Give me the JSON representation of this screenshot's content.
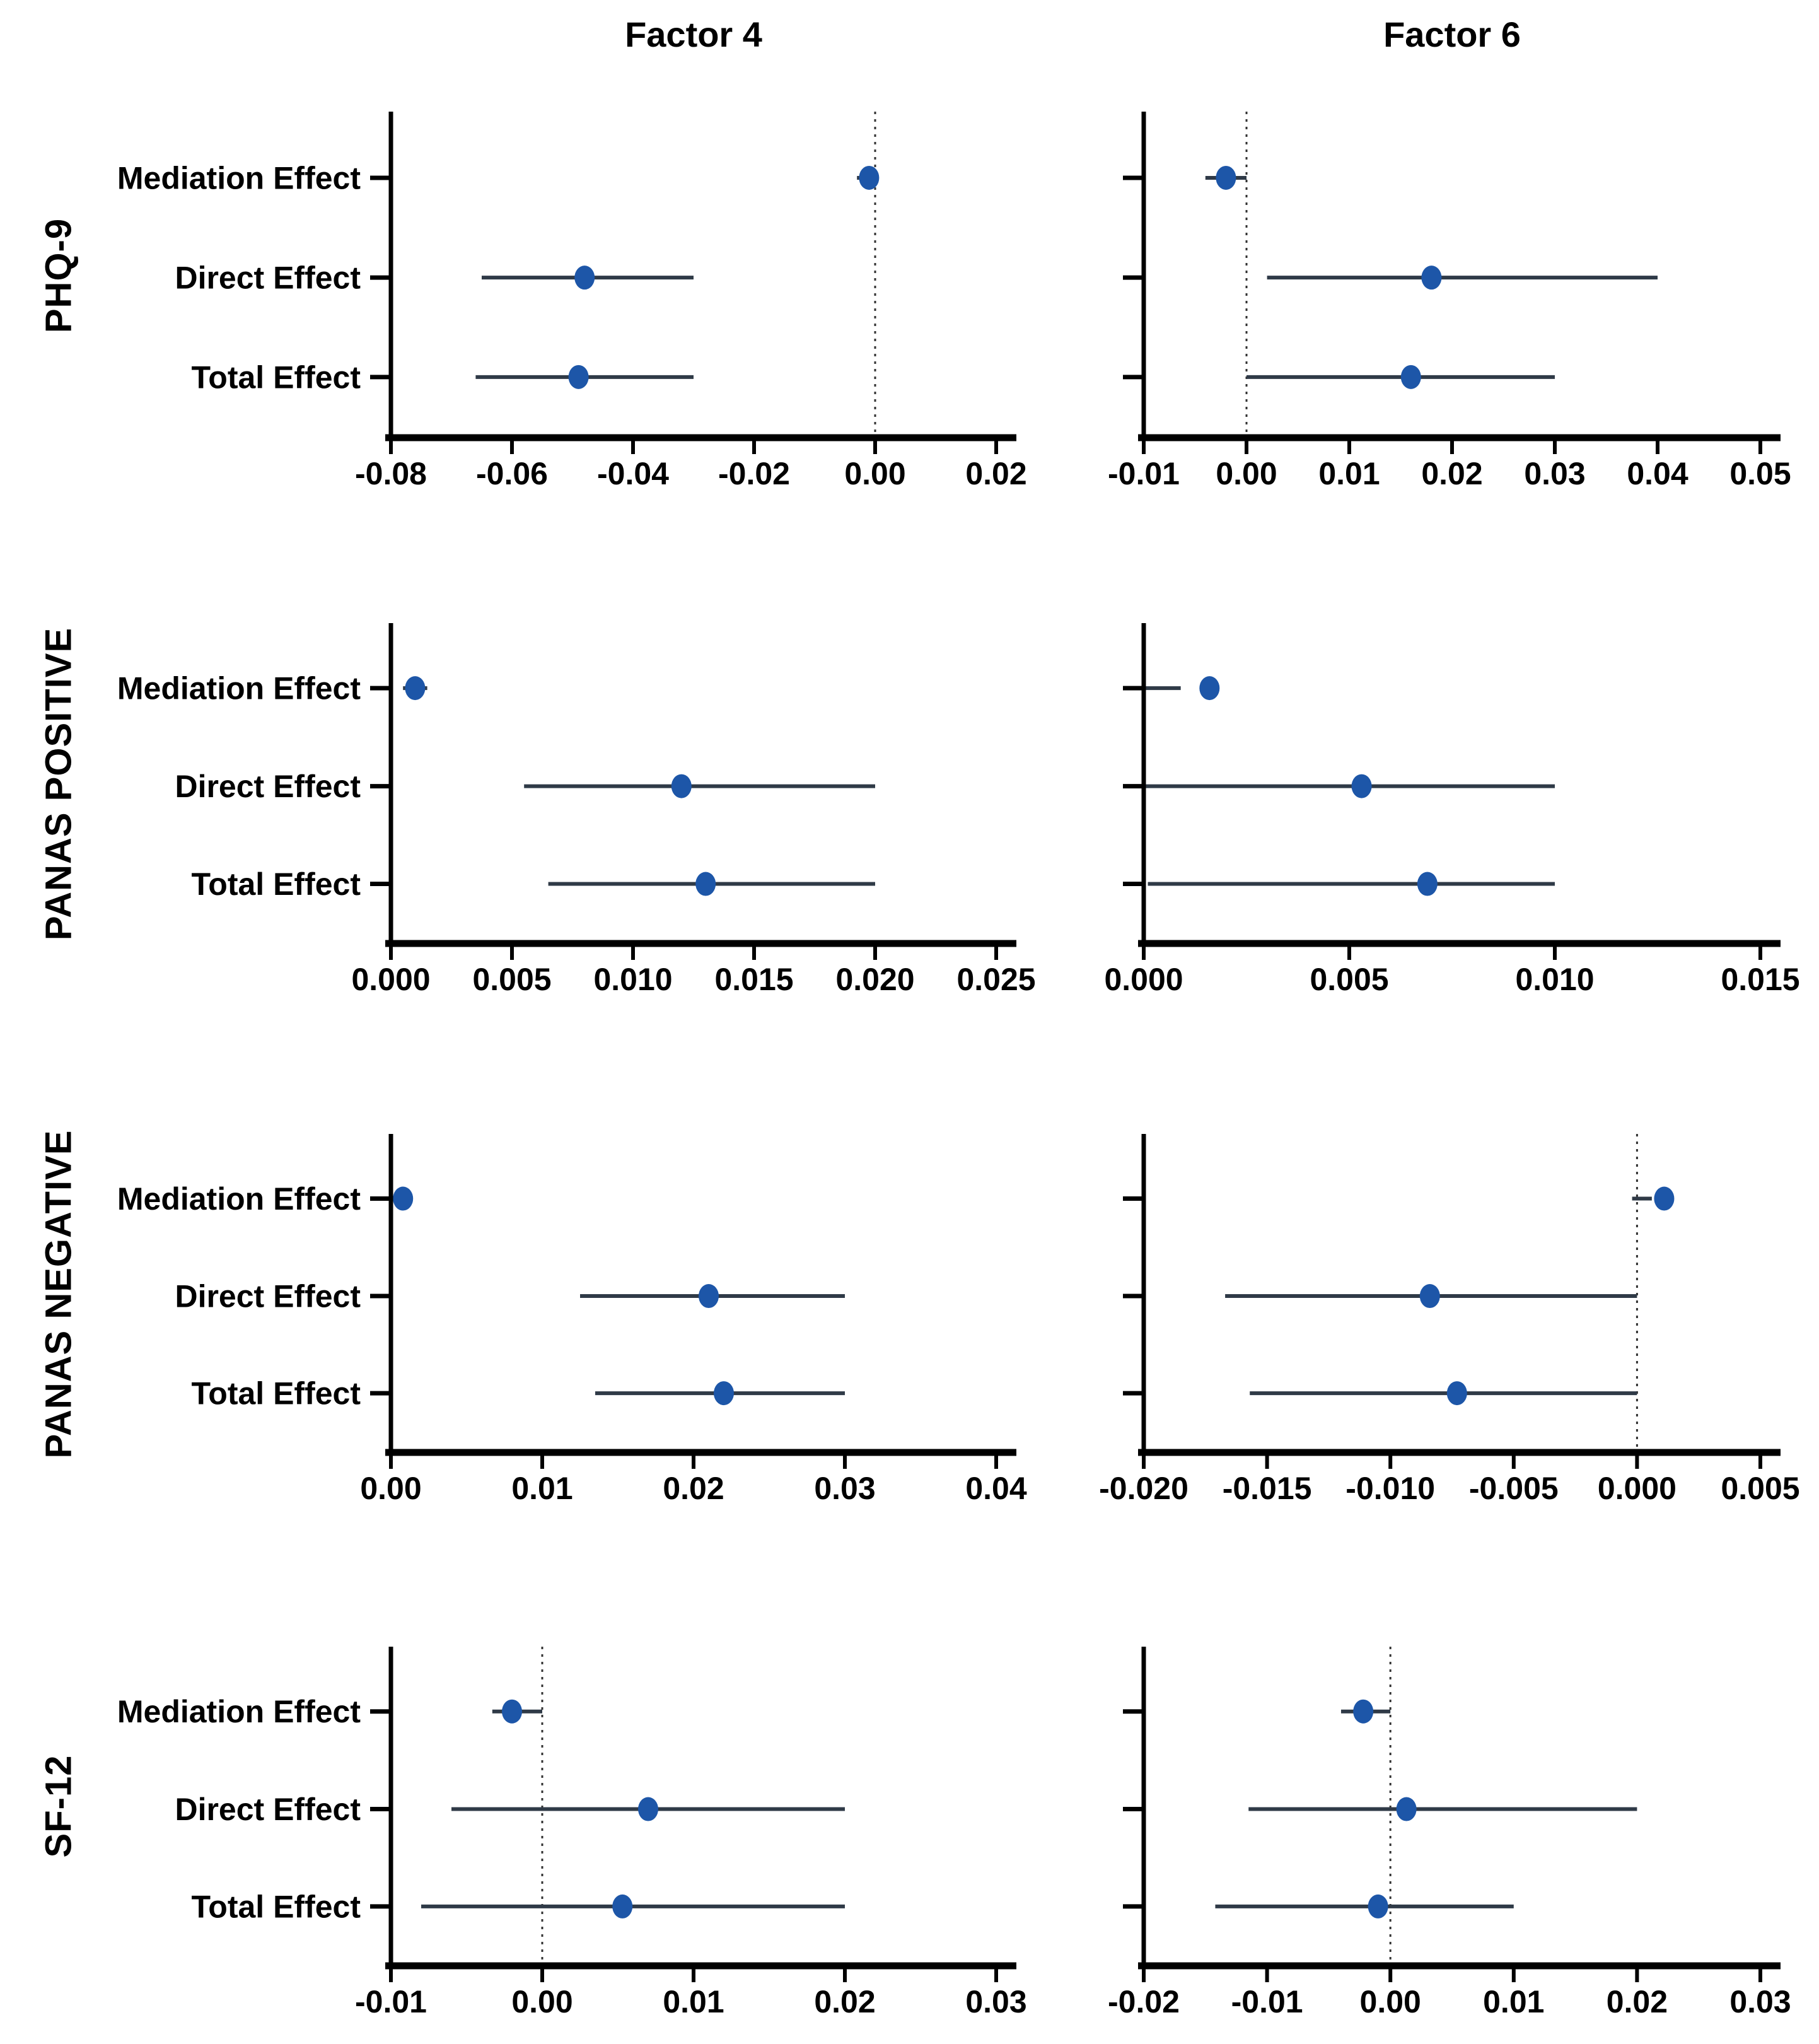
{
  "figure": {
    "column_titles": [
      "Factor 4",
      "Factor 6"
    ],
    "row_labels": [
      "PHQ-9",
      "PANAS POSITIVE",
      "PANAS NEGATIVE",
      "SF-12"
    ],
    "y_categories": [
      "Mediation Effect",
      "Direct Effect",
      "Total Effect"
    ],
    "colors": {
      "point": "#1d56a8",
      "ci_line": "#2f3a47",
      "axis": "#000000",
      "zero_line": "#333333",
      "text": "#000000",
      "background": "#ffffff"
    }
  },
  "chart_data": [
    {
      "type": "forest",
      "row_label": "PHQ-9",
      "column_title": "Factor 4",
      "categories": [
        "Mediation Effect",
        "Direct Effect",
        "Total Effect"
      ],
      "estimates": [
        -0.001,
        -0.048,
        -0.049
      ],
      "ci_low": [
        -0.003,
        -0.065,
        -0.066
      ],
      "ci_high": [
        0.0,
        -0.03,
        -0.03
      ],
      "xlim": [
        -0.08,
        0.02
      ],
      "xticks": [
        -0.08,
        -0.06,
        -0.04,
        -0.02,
        0.0,
        0.02
      ],
      "xtick_labels": [
        "-0.08",
        "-0.06",
        "-0.04",
        "-0.02",
        "0.00",
        "0.02"
      ],
      "zero_line": true
    },
    {
      "type": "forest",
      "row_label": "PHQ-9",
      "column_title": "Factor 6",
      "categories": [
        "Mediation Effect",
        "Direct Effect",
        "Total Effect"
      ],
      "estimates": [
        -0.002,
        0.018,
        0.016
      ],
      "ci_low": [
        -0.004,
        0.002,
        0.0
      ],
      "ci_high": [
        0.0,
        0.04,
        0.03
      ],
      "xlim": [
        -0.01,
        0.05
      ],
      "xticks": [
        -0.01,
        0.0,
        0.01,
        0.02,
        0.03,
        0.04,
        0.05
      ],
      "xtick_labels": [
        "-0.01",
        "0.00",
        "0.01",
        "0.02",
        "0.03",
        "0.04",
        "0.05"
      ],
      "zero_line": true
    },
    {
      "type": "forest",
      "row_label": "PANAS POSITIVE",
      "column_title": "Factor 4",
      "categories": [
        "Mediation Effect",
        "Direct Effect",
        "Total Effect"
      ],
      "estimates": [
        0.001,
        0.012,
        0.013
      ],
      "ci_low": [
        0.0005,
        0.0055,
        0.0065
      ],
      "ci_high": [
        0.0015,
        0.02,
        0.02
      ],
      "xlim": [
        0.0,
        0.025
      ],
      "xticks": [
        0.0,
        0.005,
        0.01,
        0.015,
        0.02,
        0.025
      ],
      "xtick_labels": [
        "0.000",
        "0.005",
        "0.010",
        "0.015",
        "0.020",
        "0.025"
      ],
      "zero_line": false
    },
    {
      "type": "forest",
      "row_label": "PANAS POSITIVE",
      "column_title": "Factor 6",
      "categories": [
        "Mediation Effect",
        "Direct Effect",
        "Total Effect"
      ],
      "estimates": [
        0.0016,
        0.0053,
        0.0069
      ],
      "ci_low": [
        0.0,
        0.0,
        0.0001
      ],
      "ci_high": [
        0.0009,
        0.01,
        0.01
      ],
      "xlim": [
        0.0,
        0.015
      ],
      "xticks": [
        0.0,
        0.005,
        0.01,
        0.015
      ],
      "xtick_labels": [
        "0.000",
        "0.005",
        "0.010",
        "0.015"
      ],
      "zero_line": false
    },
    {
      "type": "forest",
      "row_label": "PANAS NEGATIVE",
      "column_title": "Factor 4",
      "categories": [
        "Mediation Effect",
        "Direct Effect",
        "Total Effect"
      ],
      "estimates": [
        0.0008,
        0.021,
        0.022
      ],
      "ci_low": [
        0.0004,
        0.0125,
        0.0135
      ],
      "ci_high": [
        0.0012,
        0.03,
        0.03
      ],
      "xlim": [
        0.0,
        0.04
      ],
      "xticks": [
        0.0,
        0.01,
        0.02,
        0.03,
        0.04
      ],
      "xtick_labels": [
        "0.00",
        "0.01",
        "0.02",
        "0.03",
        "0.04"
      ],
      "zero_line": false
    },
    {
      "type": "forest",
      "row_label": "PANAS NEGATIVE",
      "column_title": "Factor 6",
      "categories": [
        "Mediation Effect",
        "Direct Effect",
        "Total Effect"
      ],
      "estimates": [
        0.0011,
        -0.0084,
        -0.0073
      ],
      "ci_low": [
        -0.0002,
        -0.0167,
        -0.0157
      ],
      "ci_high": [
        0.0006,
        0.0,
        0.0
      ],
      "xlim": [
        -0.02,
        0.005
      ],
      "xticks": [
        -0.02,
        -0.015,
        -0.01,
        -0.005,
        0.0,
        0.005
      ],
      "xtick_labels": [
        "-0.020",
        "-0.015",
        "-0.010",
        "-0.005",
        "0.000",
        "0.005"
      ],
      "zero_line": true
    },
    {
      "type": "forest",
      "row_label": "SF-12",
      "column_title": "Factor 4",
      "categories": [
        "Mediation Effect",
        "Direct Effect",
        "Total Effect"
      ],
      "estimates": [
        -0.002,
        0.007,
        0.0053
      ],
      "ci_low": [
        -0.0033,
        -0.006,
        -0.008
      ],
      "ci_high": [
        0.0,
        0.02,
        0.02
      ],
      "xlim": [
        -0.01,
        0.03
      ],
      "xticks": [
        -0.01,
        0.0,
        0.01,
        0.02,
        0.03
      ],
      "xtick_labels": [
        "-0.01",
        "0.00",
        "0.01",
        "0.02",
        "0.03"
      ],
      "zero_line": true
    },
    {
      "type": "forest",
      "row_label": "SF-12",
      "column_title": "Factor 6",
      "categories": [
        "Mediation Effect",
        "Direct Effect",
        "Total Effect"
      ],
      "estimates": [
        -0.0022,
        0.0013,
        -0.001
      ],
      "ci_low": [
        -0.004,
        -0.0115,
        -0.0142
      ],
      "ci_high": [
        0.0,
        0.02,
        0.01
      ],
      "xlim": [
        -0.02,
        0.03
      ],
      "xticks": [
        -0.02,
        -0.01,
        0.0,
        0.01,
        0.02,
        0.03
      ],
      "xtick_labels": [
        "-0.02",
        "-0.01",
        "0.00",
        "0.01",
        "0.02",
        "0.03"
      ],
      "zero_line": true
    }
  ]
}
